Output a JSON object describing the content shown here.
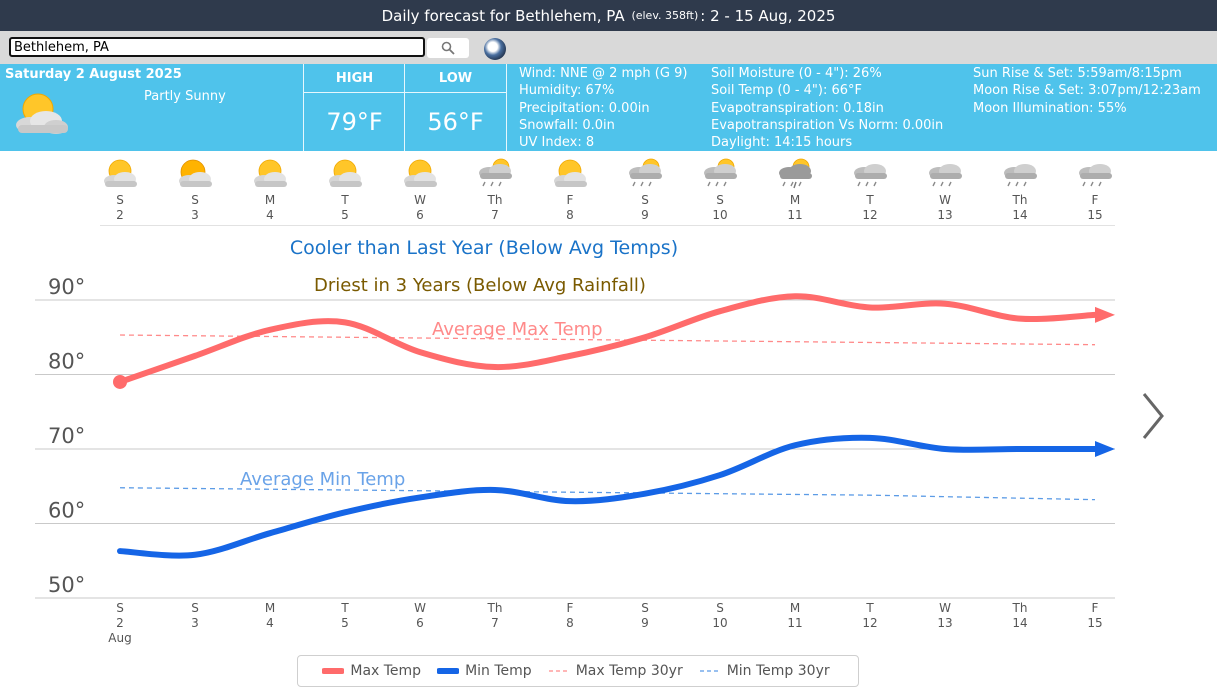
{
  "header": {
    "title_prefix": "Daily forecast for Bethlehem, PA",
    "elevation": "(elev. 358ft)",
    "title_suffix": ": 2 - 15 Aug, 2025"
  },
  "search": {
    "value": "Bethlehem, PA",
    "icon": "search-icon",
    "globe_icon": "globe-icon"
  },
  "today": {
    "date": "Saturday 2 August 2025",
    "condition": "Partly Sunny",
    "icon": "partly-sunny-icon",
    "high_label": "HIGH",
    "high": "79°F",
    "low_label": "LOW",
    "low": "56°F",
    "details_col1": [
      "Wind: NNE @ 2 mph (G 9)",
      "Humidity: 67%",
      "Precipitation: 0.00in",
      "Snowfall: 0.0in",
      "UV Index: 8"
    ],
    "details_col2": [
      "Soil Moisture (0 - 4\"): 26%",
      "Soil Temp (0 - 4\"): 66°F",
      "Evapotranspiration: 0.18in",
      "Evapotranspiration Vs Norm: 0.00in",
      "Daylight: 14:15 hours"
    ],
    "details_col3": [
      "Sun Rise & Set: 5:59am/8:15pm",
      "Moon Rise & Set: 3:07pm/12:23am",
      "Moon Illumination: 55%"
    ]
  },
  "forecast_days": [
    {
      "day": "S",
      "date": "2",
      "icon": "partly-sunny-icon"
    },
    {
      "day": "S",
      "date": "3",
      "icon": "mostly-cloudy-sun-icon"
    },
    {
      "day": "M",
      "date": "4",
      "icon": "partly-sunny-icon"
    },
    {
      "day": "T",
      "date": "5",
      "icon": "partly-sunny-icon"
    },
    {
      "day": "W",
      "date": "6",
      "icon": "partly-sunny-icon"
    },
    {
      "day": "Th",
      "date": "7",
      "icon": "sun-showers-icon"
    },
    {
      "day": "F",
      "date": "8",
      "icon": "partly-sunny-icon"
    },
    {
      "day": "S",
      "date": "9",
      "icon": "sun-showers-icon"
    },
    {
      "day": "S",
      "date": "10",
      "icon": "sun-showers-icon"
    },
    {
      "day": "M",
      "date": "11",
      "icon": "thunderstorm-sun-icon"
    },
    {
      "day": "T",
      "date": "12",
      "icon": "rain-cloud-icon"
    },
    {
      "day": "W",
      "date": "13",
      "icon": "rain-cloud-icon"
    },
    {
      "day": "Th",
      "date": "14",
      "icon": "rain-cloud-icon"
    },
    {
      "day": "F",
      "date": "15",
      "icon": "rain-cloud-icon"
    }
  ],
  "chart_data": {
    "type": "line",
    "categories": [
      "S 2",
      "S 3",
      "M 4",
      "T 5",
      "W 6",
      "Th 7",
      "F 8",
      "S 9",
      "S 10",
      "M 11",
      "T 12",
      "W 13",
      "Th 14",
      "F 15"
    ],
    "x_day_labels": [
      "S",
      "S",
      "M",
      "T",
      "W",
      "Th",
      "F",
      "S",
      "S",
      "M",
      "T",
      "W",
      "Th",
      "F"
    ],
    "x_date_labels": [
      "2",
      "3",
      "4",
      "5",
      "6",
      "7",
      "8",
      "9",
      "10",
      "11",
      "12",
      "13",
      "14",
      "15"
    ],
    "x_month_label": "Aug",
    "y_ticks": [
      50,
      60,
      70,
      80,
      90
    ],
    "y_tick_labels": [
      "50°",
      "60°",
      "70°",
      "80°",
      "90°"
    ],
    "ylim": [
      48,
      91
    ],
    "grid": true,
    "series": [
      {
        "name": "Max Temp",
        "color": "#ff6b6b",
        "style": "solid",
        "values": [
          79,
          82.5,
          86,
          87,
          83,
          81,
          82.5,
          85,
          88.5,
          90.5,
          89,
          89.5,
          87.5,
          88
        ]
      },
      {
        "name": "Min Temp",
        "color": "#1565e6",
        "style": "solid",
        "values": [
          56.3,
          55.8,
          58.7,
          61.5,
          63.5,
          64.5,
          63,
          64,
          66.5,
          70.5,
          71.5,
          70,
          70,
          70
        ]
      },
      {
        "name": "Max Temp 30yr",
        "color": "#ff8a8a",
        "style": "dashed",
        "values": [
          85.3,
          85.2,
          85.1,
          85,
          84.9,
          84.8,
          84.7,
          84.6,
          84.5,
          84.4,
          84.3,
          84.2,
          84.1,
          84
        ]
      },
      {
        "name": "Min Temp 30yr",
        "color": "#5b9be6",
        "style": "dashed",
        "values": [
          64.8,
          64.7,
          64.6,
          64.5,
          64.4,
          64.3,
          64.2,
          64.1,
          64,
          63.9,
          63.8,
          63.6,
          63.4,
          63.2
        ]
      }
    ],
    "annotations": {
      "temp_note": "Cooler than Last Year (Below Avg Temps)",
      "rain_note": "Driest in 3 Years (Below Avg Rainfall)",
      "avg_max_label": "Average Max Temp",
      "avg_min_label": "Average Min Temp"
    },
    "legend_position": "bottom"
  },
  "colors": {
    "header_bg": "#2f3a4c",
    "info_bg": "#4fc3eb",
    "max_temp": "#ff6b6b",
    "min_temp": "#1565e6"
  },
  "nav": {
    "next_icon": "chevron-right-icon"
  }
}
